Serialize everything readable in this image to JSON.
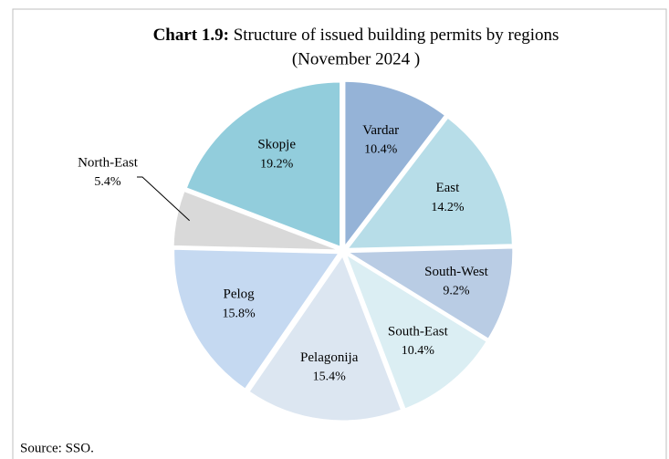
{
  "chart_data": {
    "type": "pie",
    "title_prefix": "Chart 1.9:",
    "title": "Structure of issued building permits by regions",
    "subtitle": "(November  2024 )",
    "source": "Source: SSO.",
    "categories": [
      "Vardar",
      "East",
      "South-West",
      "South-East",
      "Pelagonija",
      "Pelog",
      "North-East",
      "Skopje"
    ],
    "values": [
      10.4,
      14.2,
      9.2,
      10.4,
      15.4,
      15.8,
      5.4,
      19.2
    ],
    "value_labels": [
      "10.4%",
      "14.2%",
      "9.2%",
      "10.4%",
      "15.4%",
      "15.8%",
      "5.4%",
      "19.2%"
    ],
    "colors": [
      "#95b3d7",
      "#b7dde8",
      "#b9cce4",
      "#dbeef3",
      "#dce6f1",
      "#c5d9f1",
      "#d9d9d9",
      "#92cddc"
    ]
  }
}
